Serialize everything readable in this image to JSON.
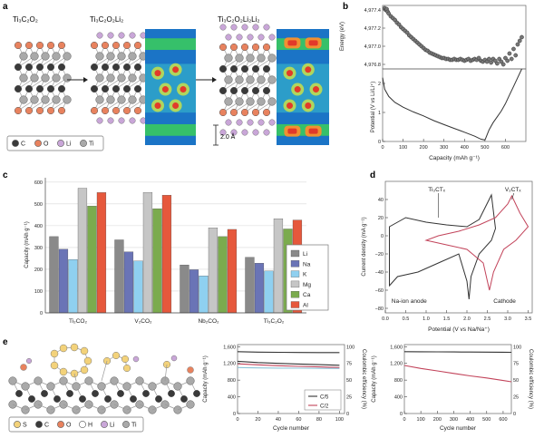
{
  "panel_labels": {
    "a": "a",
    "b": "b",
    "c": "c",
    "d": "d",
    "e": "e"
  },
  "panel_a": {
    "title_1": "Ti₃C₂O₂",
    "title_2": "Ti₃C₂O₂Li₂",
    "title_3": "Ti₃C₂O₂Li₂Li₂",
    "scale_label": "2.0 Å",
    "legend": [
      {
        "label": "C",
        "color": "#3a3a3a"
      },
      {
        "label": "O",
        "color": "#e8825e"
      },
      {
        "label": "Li",
        "color": "#c9a6d8"
      },
      {
        "label": "Ti",
        "color": "#a9a9a9"
      }
    ]
  },
  "panel_e_legend": [
    {
      "label": "S",
      "color": "#f3d27a"
    },
    {
      "label": "C",
      "color": "#3a3a3a"
    },
    {
      "label": "O",
      "color": "#e8825e"
    },
    {
      "label": "H",
      "color": "#ffffff"
    },
    {
      "label": "Li",
      "color": "#c9a6d8"
    },
    {
      "label": "Ti",
      "color": "#a9a9a9"
    }
  ],
  "chart_data": [
    {
      "id": "b_energy",
      "type": "scatter",
      "ylabel": "Energy (eV)",
      "yticks": [
        "4,977.4",
        "4,977.2",
        "4,977.0",
        "4,976.8"
      ],
      "ylim": [
        4976.75,
        4977.45
      ],
      "xlim": [
        0,
        700
      ],
      "x": [
        10,
        15,
        20,
        25,
        30,
        40,
        50,
        60,
        70,
        80,
        90,
        100,
        110,
        120,
        130,
        140,
        150,
        160,
        170,
        180,
        190,
        200,
        210,
        220,
        230,
        240,
        250,
        260,
        270,
        280,
        290,
        300,
        310,
        320,
        330,
        340,
        350,
        360,
        370,
        380,
        390,
        400,
        410,
        420,
        430,
        440,
        450,
        460,
        470,
        480,
        490,
        500,
        510,
        520,
        530,
        540,
        550,
        560,
        570,
        580,
        590,
        600,
        610,
        620,
        630,
        640,
        650,
        660,
        670,
        680
      ],
      "y": [
        4977.42,
        4977.4,
        4977.41,
        4977.38,
        4977.36,
        4977.33,
        4977.31,
        4977.29,
        4977.26,
        4977.24,
        4977.21,
        4977.19,
        4977.17,
        4977.15,
        4977.12,
        4977.1,
        4977.08,
        4977.06,
        4977.04,
        4977.02,
        4977.0,
        4976.98,
        4976.96,
        4976.95,
        4976.93,
        4976.92,
        4976.91,
        4976.9,
        4976.89,
        4976.88,
        4976.87,
        4976.87,
        4976.86,
        4976.86,
        4976.85,
        4976.85,
        4976.86,
        4976.85,
        4976.85,
        4976.86,
        4976.85,
        4976.84,
        4976.85,
        4976.86,
        4976.84,
        4976.85,
        4976.86,
        4976.85,
        4976.87,
        4976.84,
        4976.83,
        4976.85,
        4976.83,
        4976.86,
        4976.82,
        4976.86,
        4976.84,
        4976.81,
        4976.86,
        4976.83,
        4976.8,
        4976.87,
        4976.84,
        4976.92,
        4976.86,
        4976.97,
        4976.9,
        4977.02,
        4977.06,
        4977.1
      ]
    },
    {
      "id": "b_potential",
      "type": "line",
      "xlabel": "Capacity (mAh g⁻¹)",
      "ylabel": "Potential (V vs Li/Li⁺)",
      "xticks": [
        "0",
        "100",
        "200",
        "300",
        "400",
        "500",
        "600"
      ],
      "yticks": [
        "0",
        "1",
        "2"
      ],
      "xlim": [
        0,
        700
      ],
      "ylim": [
        0,
        2.5
      ],
      "discharge": {
        "x": [
          0,
          10,
          30,
          60,
          100,
          150,
          200,
          250,
          300,
          350,
          400,
          450,
          480,
          500
        ],
        "y": [
          2.2,
          1.8,
          1.55,
          1.35,
          1.18,
          1.02,
          0.88,
          0.72,
          0.58,
          0.45,
          0.32,
          0.18,
          0.08,
          0.05
        ]
      },
      "charge": {
        "x": [
          500,
          520,
          540,
          560,
          580,
          600,
          620,
          640,
          660,
          680
        ],
        "y": [
          0.05,
          0.4,
          0.65,
          0.85,
          1.05,
          1.3,
          1.6,
          1.9,
          2.2,
          2.5
        ]
      }
    },
    {
      "id": "c_capacity",
      "type": "bar",
      "ylabel": "Capacity (mAh g⁻¹)",
      "categories": [
        "Ti₂CO₂",
        "V₂CO₂",
        "Nb₂CO₂",
        "Ti₃C₂O₂"
      ],
      "ylim": [
        0,
        620
      ],
      "yticks": [
        0,
        100,
        200,
        300,
        400,
        500,
        600
      ],
      "series": [
        {
          "name": "Li",
          "color": "#8a8a8a",
          "values": [
            350,
            335,
            220,
            255
          ]
        },
        {
          "name": "Na",
          "color": "#6a74b6",
          "values": [
            292,
            280,
            198,
            228
          ]
        },
        {
          "name": "K",
          "color": "#8fd0f0",
          "values": [
            245,
            238,
            170,
            192
          ]
        },
        {
          "name": "Mg",
          "color": "#c6c6c6",
          "values": [
            572,
            552,
            390,
            432
          ]
        },
        {
          "name": "Ca",
          "color": "#7bab4e",
          "values": [
            490,
            478,
            350,
            385
          ]
        },
        {
          "name": "Al",
          "color": "#e6583c",
          "values": [
            552,
            540,
            383,
            426
          ]
        }
      ]
    },
    {
      "id": "d_cv",
      "type": "line",
      "xlabel": "Potential (V vs Na/Na⁺)",
      "ylabel": "Current density (mA g⁻¹)",
      "xticks": [
        "0.0",
        "0.5",
        "1.0",
        "1.5",
        "2.0",
        "2.5",
        "3.0",
        "3.5"
      ],
      "yticks": [
        "40",
        "20",
        "0",
        "−20",
        "−40",
        "−60",
        "−80"
      ],
      "xlim": [
        0,
        3.6
      ],
      "ylim": [
        -85,
        60
      ],
      "labels": {
        "ti": "Ti₃CTₓ",
        "v": "V₂CTₓ",
        "anode": "Na-ion anode",
        "cathode": "Cathode"
      },
      "ti_curve": {
        "x": [
          0.1,
          0.3,
          0.8,
          1.3,
          1.8,
          2.0,
          2.05,
          2.1,
          2.3,
          2.6,
          2.7,
          2.6,
          2.3,
          2.0,
          1.5,
          1.0,
          0.5,
          0.1
        ],
        "y": [
          -55,
          -45,
          -40,
          -30,
          -20,
          -50,
          -70,
          -45,
          -20,
          -5,
          8,
          45,
          18,
          10,
          12,
          15,
          20,
          10
        ]
      },
      "v_curve": {
        "x": [
          1.0,
          1.5,
          2.0,
          2.4,
          2.55,
          2.65,
          2.9,
          3.2,
          3.5,
          3.3,
          3.1,
          3.0,
          2.7,
          2.3,
          1.8,
          1.3,
          1.0
        ],
        "y": [
          -5,
          -10,
          -15,
          -30,
          -60,
          -40,
          -15,
          -5,
          10,
          25,
          44,
          35,
          20,
          12,
          5,
          0,
          -5
        ]
      }
    },
    {
      "id": "e_left",
      "type": "line",
      "xlabel": "Cycle number",
      "ylabel": "Capacity (mAh g⁻¹)",
      "ylabel_right": "Coulombic efficiency (%)",
      "xticks": [
        "0",
        "20",
        "40",
        "60",
        "80",
        "100"
      ],
      "yticks": [
        "0",
        "400",
        "800",
        "1,200",
        "1,600"
      ],
      "yticks_right": [
        "0",
        "25",
        "50",
        "75",
        "100"
      ],
      "xlim": [
        0,
        105
      ],
      "ylim": [
        0,
        1650
      ],
      "series": [
        {
          "name": "C/5",
          "color": "#333333",
          "x": [
            0,
            20,
            40,
            60,
            80,
            100
          ],
          "y": [
            1250,
            1220,
            1200,
            1185,
            1170,
            1155
          ]
        },
        {
          "name": "C/2",
          "color": "#c2435a",
          "x": [
            0,
            20,
            40,
            60,
            80,
            100
          ],
          "y": [
            1190,
            1165,
            1145,
            1130,
            1115,
            1100
          ]
        },
        {
          "name": "efficiency_c5",
          "color": "#333333",
          "x": [
            0,
            20,
            40,
            60,
            80,
            100
          ],
          "y": [
            1480,
            1470,
            1465,
            1462,
            1460,
            1458
          ]
        },
        {
          "name": "efficiency_c2",
          "color": "#8ec4d8",
          "x": [
            0,
            20,
            40,
            60,
            80,
            100
          ],
          "y": [
            1100,
            1092,
            1088,
            1085,
            1082,
            1080
          ]
        }
      ]
    },
    {
      "id": "e_right",
      "type": "line",
      "xlabel": "Cycle number",
      "ylabel": "Capacity (mAh g⁻¹)",
      "ylabel_right": "Coulombic efficiency (%)",
      "xticks": [
        "0",
        "100",
        "200",
        "300",
        "400",
        "500",
        "600"
      ],
      "yticks": [
        "0",
        "400",
        "800",
        "1,200",
        "1,600"
      ],
      "yticks_right": [
        "0",
        "25",
        "50",
        "75",
        "100"
      ],
      "xlim": [
        0,
        650
      ],
      "ylim": [
        0,
        1650
      ],
      "series": [
        {
          "name": "capacity",
          "color": "#c2435a",
          "x": [
            0,
            100,
            200,
            300,
            400,
            500,
            600,
            650
          ],
          "y": [
            1150,
            1080,
            1020,
            960,
            900,
            850,
            790,
            760
          ]
        },
        {
          "name": "efficiency",
          "color": "#333333",
          "x": [
            0,
            100,
            200,
            300,
            400,
            500,
            600,
            650
          ],
          "y": [
            1480,
            1478,
            1476,
            1474,
            1472,
            1470,
            1468,
            1466
          ]
        }
      ]
    }
  ]
}
